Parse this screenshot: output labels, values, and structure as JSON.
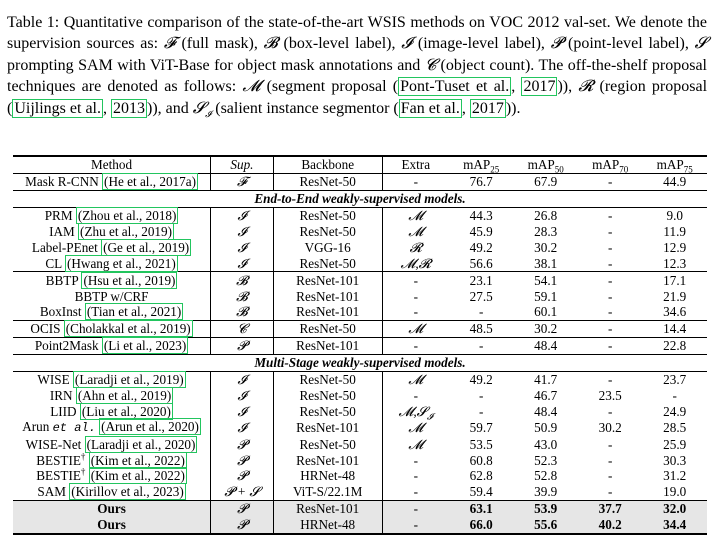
{
  "caption": {
    "label": "Table 1:",
    "p1": " Quantitative comparison of the state-of-the-art WSIS methods on VOC 2012 val-set. We denote the supervision sources as: ",
    "sym_F": "𝓕",
    "t_F": " (full mask), ",
    "sym_B": "𝓑",
    "t_B": " (box-level label), ",
    "sym_I": "𝓘",
    "t_I": " (image-level label), ",
    "sym_P": "𝓟",
    "t_P": " (point-level label), ",
    "sym_S": "𝓢",
    "t_S": " prompting SAM with ViT-Base for object mask annotations and ",
    "sym_C": "𝓒",
    "t_C": " (object count). The off-the-shelf proposal techniques are denoted as follows: ",
    "sym_M": "𝓜",
    "t_M": " (segment proposal (",
    "cite_M1": "Pont-Tuset et al.",
    "cite_M2": "2017",
    "t_R0": ")), ",
    "sym_R": "𝓡",
    "t_R": " (region proposal  (",
    "cite_R1": "Uijlings et al.",
    "cite_R2": "2013",
    "t_SI0": ")), and ",
    "sym_SI": "𝓢",
    "sym_SI_sub": "𝓘",
    "t_SI": " (salient instance segmentor (",
    "cite_SI1": "Fan et al.",
    "cite_SI2": "2017",
    "t_end": "))."
  },
  "table": {
    "headers": {
      "method": "Method",
      "sup": "Sup.",
      "backbone": "Backbone",
      "extra": "Extra",
      "m25": "mAP",
      "m25_sub": "25",
      "m50": "mAP",
      "m50_sub": "50",
      "m70": "mAP",
      "m70_sub": "70",
      "m75": "mAP",
      "m75_sub": "75"
    },
    "sections": {
      "e2e": "End-to-End weakly-supervised models.",
      "ms": "Multi-Stage weakly-supervised models."
    },
    "rows": {
      "maskrcnn": {
        "name": "Mask R-CNN",
        "c1": "He et al.",
        "c2": "2017a",
        "sup": "𝓕",
        "bb": "ResNet-50",
        "extra": "-",
        "m25": "76.7",
        "m50": "67.9",
        "m70": "-",
        "m75": "44.9"
      },
      "prm": {
        "name": "PRM",
        "c1": "Zhou et al.",
        "c2": "2018",
        "sup": "𝓘",
        "bb": "ResNet-50",
        "extra": "𝓜",
        "m25": "44.3",
        "m50": "26.8",
        "m70": "-",
        "m75": "9.0"
      },
      "iam": {
        "name": "IAM",
        "c1": "Zhu et al.",
        "c2": "2019",
        "sup": "𝓘",
        "bb": "ResNet-50",
        "extra": "𝓜",
        "m25": "45.9",
        "m50": "28.3",
        "m70": "-",
        "m75": "11.9"
      },
      "labelpe": {
        "name": "Label-PEnet",
        "c1": "Ge et al.",
        "c2": "2019",
        "sup": "𝓘",
        "bb": "VGG-16",
        "extra": "𝓡",
        "m25": "49.2",
        "m50": "30.2",
        "m70": "-",
        "m75": "12.9"
      },
      "cl": {
        "name": "CL",
        "c1": "Hwang et al.",
        "c2": "2021",
        "sup": "𝓘",
        "bb": "ResNet-50",
        "extra": "𝓜,𝓡",
        "m25": "56.6",
        "m50": "38.1",
        "m70": "-",
        "m75": "12.3"
      },
      "bbtp": {
        "name": "BBTP",
        "c1": "Hsu et al.",
        "c2": "2019",
        "sup": "𝓑",
        "bb": "ResNet-101",
        "extra": "-",
        "m25": "23.1",
        "m50": "54.1",
        "m70": "-",
        "m75": "17.1"
      },
      "bbtpcrf": {
        "name": "BBTP w/CRF",
        "sup": "𝓑",
        "bb": "ResNet-101",
        "extra": "-",
        "m25": "27.5",
        "m50": "59.1",
        "m70": "-",
        "m75": "21.9"
      },
      "boxinst": {
        "name": "BoxInst",
        "c1": "Tian et al.",
        "c2": "2021",
        "sup": "𝓑",
        "bb": "ResNet-101",
        "extra": "-",
        "m25": "-",
        "m50": "60.1",
        "m70": "-",
        "m75": "34.6"
      },
      "ocis": {
        "name": "OCIS",
        "c1": "Cholakkal et al.",
        "c2": "2019",
        "sup": "𝓒",
        "bb": "ResNet-50",
        "extra": "𝓜",
        "m25": "48.5",
        "m50": "30.2",
        "m70": "-",
        "m75": "14.4"
      },
      "p2m": {
        "name": "Point2Mask",
        "c1": "Li et al.",
        "c2": "2023",
        "sup": "𝓟",
        "bb": "ResNet-101",
        "extra": "-",
        "m25": "-",
        "m50": "48.4",
        "m70": "-",
        "m75": "22.8"
      },
      "wise": {
        "name": "WISE",
        "c1": "Laradji et al.",
        "c2": "2019",
        "sup": "𝓘",
        "bb": "ResNet-50",
        "extra": "𝓜",
        "m25": "49.2",
        "m50": "41.7",
        "m70": "-",
        "m75": "23.7"
      },
      "irn": {
        "name": "IRN",
        "c1": "Ahn et al.",
        "c2": "2019",
        "sup": "𝓘",
        "bb": "ResNet-50",
        "extra": "-",
        "m25": "-",
        "m50": "46.7",
        "m70": "23.5",
        "m75": "-"
      },
      "liid": {
        "name": "LIID",
        "c1": "Liu et al.",
        "c2": "2020",
        "sup": "𝓘",
        "bb": "ResNet-50",
        "extra": "𝓜,𝓢",
        "extra_sub": "𝓘",
        "m25": "-",
        "m50": "48.4",
        "m70": "-",
        "m75": "24.9"
      },
      "arun": {
        "name": "Arun",
        "name_etal": "et al.",
        "c1": "Arun et al.",
        "c2": "2020",
        "sup": "𝓘",
        "bb": "ResNet-101",
        "extra": "𝓜",
        "m25": "59.7",
        "m50": "50.9",
        "m70": "30.2",
        "m75": "28.5"
      },
      "wisenet": {
        "name": "WISE-Net",
        "c1": "Laradji et al.",
        "c2": "2020",
        "sup": "𝓟",
        "bb": "ResNet-50",
        "extra": "𝓜",
        "m25": "53.5",
        "m50": "43.0",
        "m70": "-",
        "m75": "25.9"
      },
      "bestie1": {
        "name": "BESTIE",
        "dagger": "†",
        "c1": "Kim et al.",
        "c2": "2022",
        "sup": "𝓟",
        "bb": "ResNet-101",
        "extra": "-",
        "m25": "60.8",
        "m50": "52.3",
        "m70": "-",
        "m75": "30.3"
      },
      "bestie2": {
        "name": "BESTIE",
        "dagger": "†",
        "c1": "Kim et al.",
        "c2": "2022",
        "sup": "𝓟",
        "bb": "HRNet-48",
        "extra": "-",
        "m25": "62.8",
        "m50": "52.8",
        "m70": "-",
        "m75": "31.2"
      },
      "sam": {
        "name": "SAM",
        "c1": "Kirillov et al.",
        "c2": "2023",
        "sup": "𝓟 + 𝓢",
        "bb": "ViT-S/22.1M",
        "extra": "-",
        "m25": "59.4",
        "m50": "39.9",
        "m70": "-",
        "m75": "19.0"
      },
      "ours1": {
        "name": "Ours",
        "sup": "𝓟",
        "bb": "ResNet-101",
        "extra": "-",
        "m25": "63.1",
        "m50": "53.9",
        "m70": "37.7",
        "m75": "32.0"
      },
      "ours2": {
        "name": "Ours",
        "sup": "𝓟",
        "bb": "HRNet-48",
        "extra": "-",
        "m25": "66.0",
        "m50": "55.6",
        "m70": "40.2",
        "m75": "34.4"
      }
    }
  }
}
